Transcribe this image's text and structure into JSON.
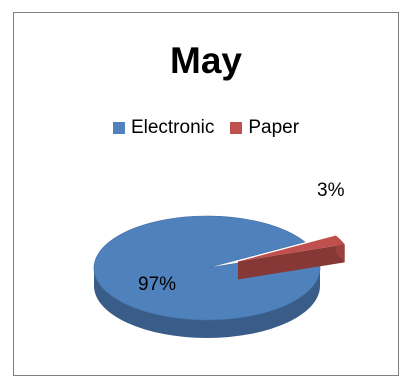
{
  "chart_data": {
    "type": "pie",
    "title": "May",
    "categories": [
      "Electronic",
      "Paper"
    ],
    "values": [
      97,
      3
    ],
    "data_labels": [
      "97%",
      "3%"
    ],
    "colors": [
      "#4f81bd",
      "#c0504d"
    ],
    "legend_position": "top",
    "style": "3d-exploded-slice"
  }
}
